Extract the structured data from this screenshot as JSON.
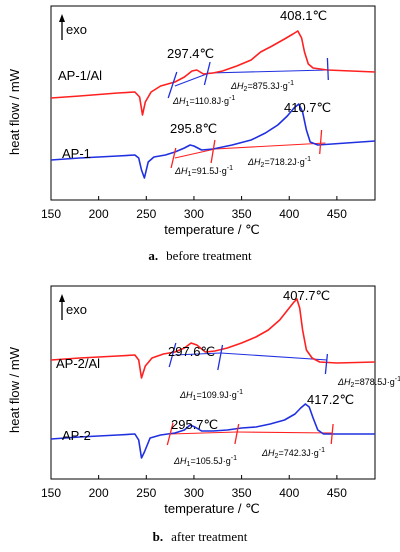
{
  "chart_data": [
    {
      "type": "line",
      "panel_caption_letter": "a.",
      "panel_caption_text": "before treatment",
      "xlabel": "temperature / ℃",
      "ylabel": "heat flow / mW",
      "exo_label": "exo",
      "xlim": [
        150,
        490
      ],
      "xticks": [
        150,
        200,
        250,
        300,
        350,
        400,
        450
      ],
      "series": [
        {
          "name": "AP-1/Al",
          "color": "#ff2020",
          "points": [
            [
              150,
              98
            ],
            [
              180,
              96
            ],
            [
              220,
              93
            ],
            [
              238,
              92
            ],
            [
              243,
              97
            ],
            [
              246,
              115
            ],
            [
              249,
              102
            ],
            [
              255,
              92
            ],
            [
              265,
              86
            ],
            [
              280,
              82
            ],
            [
              290,
              77
            ],
            [
              298,
              71
            ],
            [
              303,
              70
            ],
            [
              310,
              74
            ],
            [
              320,
              73
            ],
            [
              330,
              71
            ],
            [
              345,
              66
            ],
            [
              360,
              60
            ],
            [
              370,
              52
            ],
            [
              382,
              46
            ],
            [
              395,
              39
            ],
            [
              404,
              34
            ],
            [
              409,
              31
            ],
            [
              413,
              38
            ],
            [
              416,
              52
            ],
            [
              420,
              64
            ],
            [
              425,
              68
            ],
            [
              440,
              70
            ],
            [
              490,
              72
            ]
          ]
        },
        {
          "name": "AP-1",
          "color": "#2030e0",
          "points": [
            [
              150,
              160
            ],
            [
              180,
              158
            ],
            [
              220,
              156
            ],
            [
              238,
              155
            ],
            [
              242,
              158
            ],
            [
              245,
              170
            ],
            [
              248,
              178
            ],
            [
              252,
              162
            ],
            [
              258,
              157
            ],
            [
              270,
              155
            ],
            [
              280,
              152
            ],
            [
              290,
              148
            ],
            [
              296,
              145
            ],
            [
              300,
              146
            ],
            [
              308,
              150
            ],
            [
              320,
              149
            ],
            [
              340,
              145
            ],
            [
              360,
              140
            ],
            [
              375,
              133
            ],
            [
              388,
              125
            ],
            [
              398,
              116
            ],
            [
              405,
              108
            ],
            [
              410,
              104
            ],
            [
              414,
              112
            ],
            [
              418,
              130
            ],
            [
              422,
              142
            ],
            [
              430,
              145
            ],
            [
              445,
              144
            ],
            [
              490,
              141
            ]
          ]
        }
      ],
      "baselines": [
        {
          "color": "#2030e0",
          "points": [
            [
              280,
              86
            ],
            [
              316,
              73
            ]
          ]
        },
        {
          "color": "#2030e0",
          "points": [
            [
              316,
              73
            ],
            [
              440,
              70
            ]
          ]
        },
        {
          "color": "#ff2020",
          "points": [
            [
              280,
              158
            ],
            [
              322,
              149
            ]
          ]
        },
        {
          "color": "#ff2020",
          "points": [
            [
              322,
              149
            ],
            [
              438,
              143
            ]
          ]
        }
      ],
      "markers": [
        {
          "color": "#2030e0",
          "points": [
            [
              273,
              98
            ],
            [
              282,
              72
            ]
          ]
        },
        {
          "color": "#2030e0",
          "points": [
            [
              311,
              85
            ],
            [
              317,
              62
            ]
          ]
        },
        {
          "color": "#2030e0",
          "points": [
            [
              440,
              58
            ],
            [
              441,
              80
            ]
          ]
        },
        {
          "color": "#ff2020",
          "points": [
            [
              276,
              168
            ],
            [
              281,
              148
            ]
          ]
        },
        {
          "color": "#ff2020",
          "points": [
            [
              318,
              163
            ],
            [
              322,
              140
            ]
          ]
        },
        {
          "color": "#ff2020",
          "points": [
            [
              432,
              154
            ],
            [
              434,
              130
            ]
          ]
        }
      ],
      "annotations": {
        "peak1": "297.4℃",
        "peak2": "408.1℃",
        "h1_prefix": "ΔH",
        "h1_sub": "1",
        "h1_value": "=110.8J·g",
        "h1_sup": "-1",
        "h2_prefix": "ΔH",
        "h2_sub": "2",
        "h2_value": "=875.3J·g",
        "h2_sup": "-1"
      },
      "annotations_b": {
        "peak1": "295.8℃",
        "peak2": "410.7℃",
        "h1_prefix": "ΔH",
        "h1_sub": "1",
        "h1_value": "=91.5J·g",
        "h1_sup": "-1",
        "h2_prefix": "ΔH",
        "h2_sub": "2",
        "h2_value": "=718.2J·g",
        "h2_sup": "-1"
      }
    },
    {
      "type": "line",
      "panel_caption_letter": "b.",
      "panel_caption_text": "after treatment",
      "xlabel": "temperature / ℃",
      "ylabel": "heat flow / mW",
      "exo_label": "exo",
      "xlim": [
        150,
        490
      ],
      "xticks": [
        150,
        200,
        250,
        300,
        350,
        400,
        450
      ],
      "series": [
        {
          "name": "AP-2/Al",
          "color": "#ff2020",
          "points": [
            [
              150,
              360
            ],
            [
              180,
              358
            ],
            [
              220,
              356
            ],
            [
              238,
              355
            ],
            [
              242,
              360
            ],
            [
              245,
              378
            ],
            [
              249,
              366
            ],
            [
              256,
              358
            ],
            [
              268,
              354
            ],
            [
              280,
              352
            ],
            [
              290,
              348
            ],
            [
              297,
              343
            ],
            [
              303,
              345
            ],
            [
              312,
              352
            ],
            [
              322,
              351
            ],
            [
              335,
              348
            ],
            [
              350,
              343
            ],
            [
              365,
              337
            ],
            [
              378,
              330
            ],
            [
              390,
              320
            ],
            [
              400,
              308
            ],
            [
              405,
              302
            ],
            [
              408,
              299
            ],
            [
              411,
              308
            ],
            [
              414,
              330
            ],
            [
              418,
              350
            ],
            [
              424,
              358
            ],
            [
              432,
              362
            ],
            [
              450,
              363
            ],
            [
              490,
              362
            ]
          ]
        },
        {
          "name": "AP-2",
          "color": "#2030e0",
          "points": [
            [
              150,
              439
            ],
            [
              180,
              437
            ],
            [
              220,
              435
            ],
            [
              238,
              434
            ],
            [
              242,
              440
            ],
            [
              245,
              458
            ],
            [
              248,
              452
            ],
            [
              254,
              438
            ],
            [
              265,
              435
            ],
            [
              280,
              433
            ],
            [
              290,
              430
            ],
            [
              296,
              425
            ],
            [
              301,
              427
            ],
            [
              308,
              431
            ],
            [
              320,
              431
            ],
            [
              335,
              430
            ],
            [
              350,
              428
            ],
            [
              365,
              427
            ],
            [
              380,
              424
            ],
            [
              395,
              420
            ],
            [
              406,
              414
            ],
            [
              412,
              408
            ],
            [
              417,
              404
            ],
            [
              421,
              407
            ],
            [
              425,
              418
            ],
            [
              430,
              430
            ],
            [
              436,
              434
            ],
            [
              450,
              434
            ],
            [
              490,
              434
            ]
          ]
        }
      ],
      "baselines": [
        {
          "color": "#2030e0",
          "points": [
            [
              280,
              355
            ],
            [
              328,
              353
            ]
          ]
        },
        {
          "color": "#2030e0",
          "points": [
            [
              328,
              353
            ],
            [
              440,
              360
            ]
          ]
        },
        {
          "color": "#ff2020",
          "points": [
            [
              275,
              434
            ],
            [
              345,
              432
            ]
          ]
        },
        {
          "color": "#ff2020",
          "points": [
            [
              345,
              432
            ],
            [
              445,
              433
            ]
          ]
        }
      ],
      "markers": [
        {
          "color": "#2030e0",
          "points": [
            [
              274,
              367
            ],
            [
              281,
              343
            ]
          ]
        },
        {
          "color": "#2030e0",
          "points": [
            [
              325,
              370
            ],
            [
              330,
              345
            ]
          ]
        },
        {
          "color": "#2030e0",
          "points": [
            [
              438,
              374
            ],
            [
              440,
              354
            ]
          ]
        },
        {
          "color": "#ff2020",
          "points": [
            [
              272,
              445
            ],
            [
              278,
              423
            ]
          ]
        },
        {
          "color": "#ff2020",
          "points": [
            [
              343,
              444
            ],
            [
              347,
              424
            ]
          ]
        },
        {
          "color": "#ff2020",
          "points": [
            [
              444,
              444
            ],
            [
              446,
              424
            ]
          ]
        }
      ],
      "annotations": {
        "peak1": "297.6℃",
        "peak2": "407.7℃",
        "h1_prefix": "ΔH",
        "h1_sub": "1",
        "h1_value": "=109.9J·g",
        "h1_sup": "-1",
        "h2_prefix": "ΔH",
        "h2_sub": "2",
        "h2_value": "=878.5J·g",
        "h2_sup": "-1"
      },
      "annotations_b": {
        "peak1": "295.7℃",
        "peak2": "417.2℃",
        "h1_prefix": "ΔH",
        "h1_sub": "1",
        "h1_value": "=105.5J·g",
        "h1_sup": "-1",
        "h2_prefix": "ΔH",
        "h2_sub": "2",
        "h2_value": "=742.3J·g",
        "h2_sup": "-1"
      }
    }
  ]
}
